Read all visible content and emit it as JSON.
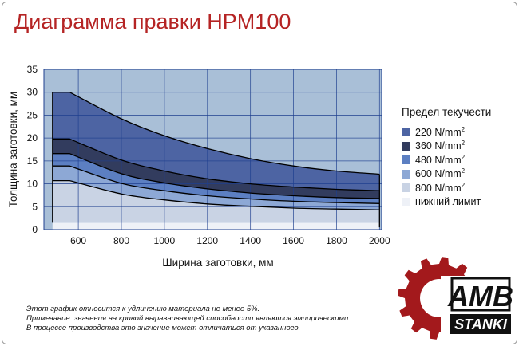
{
  "title": "Диаграмма правки HPM100",
  "legend": {
    "title": "Предел текучести",
    "items": [
      {
        "label": "220 N/mm",
        "sup": "2",
        "color": "#4d64a3"
      },
      {
        "label": "360 N/mm",
        "sup": "2",
        "color": "#323c5e"
      },
      {
        "label": "480 N/mm",
        "sup": "2",
        "color": "#5c7fc2"
      },
      {
        "label": "600 N/mm",
        "sup": "2",
        "color": "#8da8d5"
      },
      {
        "label": "800 N/mm",
        "sup": "2",
        "color": "#c9d3e4"
      },
      {
        "label": "нижний лимит",
        "sup": "",
        "color": "#eef1f7"
      }
    ]
  },
  "notes": [
    "Этот график относится к удлинению материала не менее 5%.",
    "Примечание: значения на кривой выравнивающей способности являются эмпирическими.",
    "В процессе производства это значение может отличаться от указанного."
  ],
  "logo": {
    "top_text": "AMB",
    "bottom_text": "STANKI",
    "accent": "#a3191c"
  },
  "chart_data": {
    "type": "area",
    "xlabel": "Ширина заготовки, мм",
    "ylabel": "Толщина заготовки, мм",
    "xlim": [
      440,
      2010
    ],
    "ylim": [
      0,
      35
    ],
    "x_ticks": [
      600,
      800,
      1000,
      1200,
      1400,
      1600,
      1800,
      2000
    ],
    "y_ticks": [
      0,
      5,
      10,
      15,
      20,
      25,
      30,
      35
    ],
    "grid": true,
    "min_width": 480,
    "background_color": "#a9bfd7",
    "lower_limit": {
      "name": "нижний лимит",
      "value": 1.5,
      "color": "#eef1f7"
    },
    "series": [
      {
        "name": "220 N/mm²",
        "color": "#4d64a3",
        "x": [
          480,
          560,
          800,
          1000,
          1200,
          1400,
          1600,
          1800,
          2000
        ],
        "y": [
          30,
          30,
          24.2,
          20.5,
          17.7,
          15.5,
          13.9,
          12.8,
          12.1
        ]
      },
      {
        "name": "360 N/mm²",
        "color": "#323c5e",
        "x": [
          480,
          560,
          800,
          1000,
          1200,
          1400,
          1600,
          1800,
          2000
        ],
        "y": [
          19.8,
          19.8,
          15.2,
          12.8,
          11.1,
          10,
          9.3,
          8.8,
          8.5
        ]
      },
      {
        "name": "480 N/mm²",
        "color": "#5c7fc2",
        "x": [
          480,
          560,
          800,
          1000,
          1200,
          1400,
          1600,
          1800,
          2000
        ],
        "y": [
          16.6,
          16.6,
          12.2,
          10.2,
          8.9,
          8,
          7.4,
          7,
          6.8
        ]
      },
      {
        "name": "600 N/mm²",
        "color": "#8da8d5",
        "x": [
          480,
          560,
          800,
          1000,
          1200,
          1400,
          1600,
          1800,
          2000
        ],
        "y": [
          13.9,
          13.9,
          10.1,
          8.5,
          7.4,
          6.7,
          6.2,
          5.9,
          5.7
        ]
      },
      {
        "name": "800 N/mm²",
        "color": "#c9d3e4",
        "x": [
          480,
          560,
          800,
          1000,
          1200,
          1400,
          1600,
          1800,
          2000
        ],
        "y": [
          10.7,
          10.7,
          7.8,
          6.5,
          5.6,
          5.1,
          4.7,
          4.5,
          4.3
        ]
      }
    ]
  }
}
